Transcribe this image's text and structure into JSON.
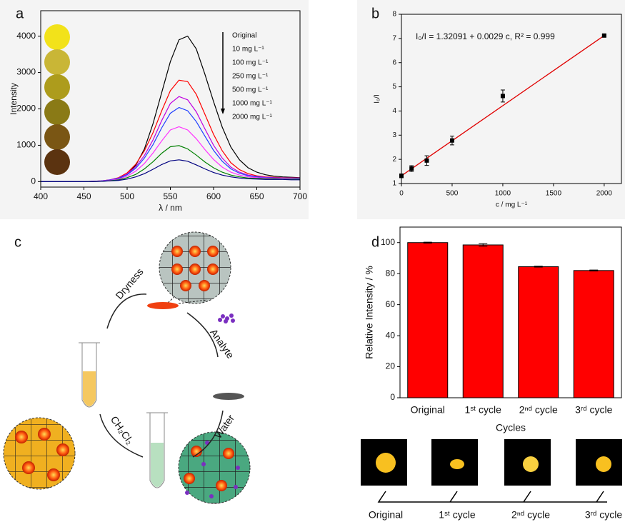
{
  "chart_data": [
    {
      "type": "line",
      "panel_label": "a",
      "xlabel": "λ / nm",
      "ylabel": "Intensity",
      "x": [
        400,
        410,
        420,
        430,
        440,
        450,
        460,
        470,
        480,
        490,
        500,
        510,
        520,
        530,
        540,
        550,
        560,
        570,
        580,
        590,
        600,
        610,
        620,
        630,
        640,
        650,
        660,
        670,
        680,
        690,
        700
      ],
      "xlim": [
        400,
        700
      ],
      "xticks": [
        400,
        450,
        500,
        550,
        600,
        650,
        700
      ],
      "ylim": [
        -150,
        4700
      ],
      "yticks": [
        0,
        1000,
        2000,
        3000,
        4000
      ],
      "series": [
        {
          "name": "Original",
          "color": "#000000",
          "values": [
            0,
            0,
            0,
            0,
            0,
            0,
            5,
            10,
            30,
            80,
            200,
            450,
            900,
            1600,
            2450,
            3300,
            3900,
            4000,
            3650,
            2950,
            2200,
            1500,
            950,
            600,
            380,
            260,
            190,
            150,
            130,
            120,
            110
          ]
        },
        {
          "name": "10 mg L⁻¹",
          "color": "#ff0000",
          "values": [
            0,
            0,
            0,
            0,
            0,
            0,
            10,
            20,
            50,
            110,
            240,
            480,
            850,
            1350,
            1950,
            2500,
            2790,
            2750,
            2400,
            1850,
            1300,
            850,
            520,
            330,
            220,
            160,
            130,
            120,
            110,
            110,
            100
          ]
        },
        {
          "name": "100 mg L⁻¹",
          "color": "#c000e0",
          "values": [
            0,
            0,
            0,
            0,
            0,
            0,
            10,
            20,
            50,
            100,
            210,
            410,
            720,
            1150,
            1680,
            2150,
            2340,
            2250,
            1920,
            1450,
            1000,
            650,
            400,
            260,
            180,
            140,
            120,
            110,
            100,
            100,
            100
          ]
        },
        {
          "name": "250 mg L⁻¹",
          "color": "#1f3fff",
          "values": [
            0,
            0,
            0,
            0,
            0,
            0,
            10,
            20,
            45,
            90,
            190,
            370,
            650,
            1020,
            1480,
            1880,
            2040,
            1950,
            1650,
            1250,
            860,
            560,
            350,
            230,
            160,
            130,
            110,
            100,
            100,
            100,
            90
          ]
        },
        {
          "name": "500 mg L⁻¹",
          "color": "#ff30ff",
          "values": [
            0,
            0,
            0,
            0,
            0,
            0,
            10,
            15,
            35,
            70,
            150,
            290,
            500,
            790,
            1120,
            1420,
            1510,
            1420,
            1180,
            880,
            610,
            400,
            260,
            180,
            130,
            110,
            100,
            90,
            90,
            90,
            80
          ]
        },
        {
          "name": "1000 mg L⁻¹",
          "color": "#008000",
          "values": [
            0,
            0,
            0,
            0,
            0,
            0,
            5,
            10,
            25,
            50,
            110,
            200,
            350,
            550,
            780,
            960,
            990,
            900,
            730,
            540,
            380,
            260,
            180,
            130,
            100,
            90,
            80,
            80,
            70,
            70,
            70
          ]
        },
        {
          "name": "2000 mg L⁻¹",
          "color": "#000080",
          "values": [
            0,
            0,
            0,
            0,
            0,
            0,
            5,
            10,
            20,
            35,
            70,
            130,
            220,
            340,
            470,
            570,
            600,
            560,
            460,
            350,
            250,
            180,
            130,
            100,
            80,
            70,
            60,
            60,
            60,
            50,
            50
          ]
        }
      ]
    },
    {
      "type": "scatter",
      "panel_label": "b",
      "xlabel": "c / mg L⁻¹",
      "ylabel": "I₀/I",
      "annotation": "I₀/I = 1.32091 + 0.0029 c, R² = 0.999",
      "xlim": [
        0,
        2170
      ],
      "xticks": [
        0,
        500,
        1000,
        1500,
        2000
      ],
      "ylim": [
        1,
        8
      ],
      "yticks": [
        1,
        2,
        3,
        4,
        5,
        6,
        7,
        8
      ],
      "series": [
        {
          "color": "#000000",
          "x": [
            0,
            100,
            250,
            500,
            1000,
            2000
          ],
          "values": [
            1.32,
            1.62,
            1.95,
            2.78,
            4.62,
            7.12
          ],
          "errors": [
            0.08,
            0.12,
            0.2,
            0.18,
            0.25,
            0.03
          ]
        }
      ],
      "fit": {
        "color": "#e00000",
        "x": [
          0,
          2000
        ],
        "values": [
          1.32,
          7.12
        ]
      }
    },
    {
      "type": "bar",
      "panel_label": "d",
      "xlabel": "Cycles",
      "ylabel": "Relative Intensity / %",
      "categories": [
        "Original",
        "1ˢᵗ cycle",
        "2ⁿᵈ cycle",
        "3ʳᵈ cycle"
      ],
      "values": [
        100,
        98.5,
        84.5,
        82
      ],
      "errors": [
        0.3,
        0.8,
        0.3,
        0.3
      ],
      "color": "#ff0000",
      "ylim": [
        0,
        110
      ],
      "yticks": [
        0,
        20,
        40,
        60,
        80,
        100
      ]
    }
  ],
  "diagram": {
    "panel_label": "c",
    "steps": [
      "Dryness",
      "Analyte",
      "Water",
      "CH₂Cl₂"
    ]
  }
}
